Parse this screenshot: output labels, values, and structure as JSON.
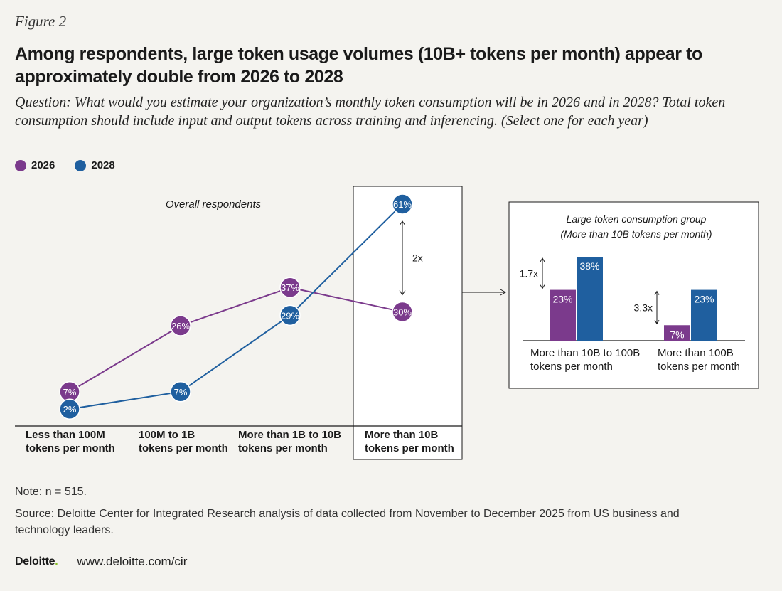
{
  "figure_label": "Figure 2",
  "title": "Among respondents, large token usage volumes (10B+ tokens per month) appear to approximately double from 2026 to 2028",
  "question": "Question: What would you estimate your organization’s monthly token consumption will be in 2026 and in 2028? Total token consumption should include input and output tokens across training and inferencing. (Select one for each year)",
  "legend": [
    {
      "label": "2026",
      "color": "#7b3a8c"
    },
    {
      "label": "2028",
      "color": "#1f5f9f"
    }
  ],
  "note": "Note: n = 515.",
  "source": "Source: Deloitte Center for Integrated Research analysis of data collected from November to December 2025 from US business and technology leaders.",
  "footer": {
    "logo": "Deloitte",
    "logo_dot": ".",
    "url": "www.deloitte.com/cir"
  },
  "colors": {
    "c2026": "#7b3a8c",
    "c2028": "#1f5f9f",
    "line": "#1a1a1a"
  },
  "chart_data": [
    {
      "type": "line",
      "subtitle": "Overall respondents",
      "categories": [
        [
          "Less than 100M",
          "tokens per month"
        ],
        [
          "100M to 1B",
          "tokens per month"
        ],
        [
          "More than 1B to 10B",
          "tokens per month"
        ],
        [
          "More than 10B",
          "tokens per month"
        ]
      ],
      "series": [
        {
          "name": "2026",
          "values": [
            7,
            26,
            37,
            30
          ]
        },
        {
          "name": "2028",
          "values": [
            2,
            7,
            29,
            61
          ]
        }
      ],
      "highlighted_category": 3,
      "annotation": "2x"
    },
    {
      "type": "bar",
      "title": [
        "Large token consumption group",
        "(More than 10B tokens per month)"
      ],
      "categories": [
        [
          "More than 10B to 100B",
          "tokens per month"
        ],
        [
          "More than 100B",
          "tokens per month"
        ]
      ],
      "series": [
        {
          "name": "2026",
          "values": [
            23,
            7
          ]
        },
        {
          "name": "2028",
          "values": [
            38,
            23
          ]
        }
      ],
      "annotations": [
        "1.7x",
        "3.3x"
      ]
    }
  ]
}
